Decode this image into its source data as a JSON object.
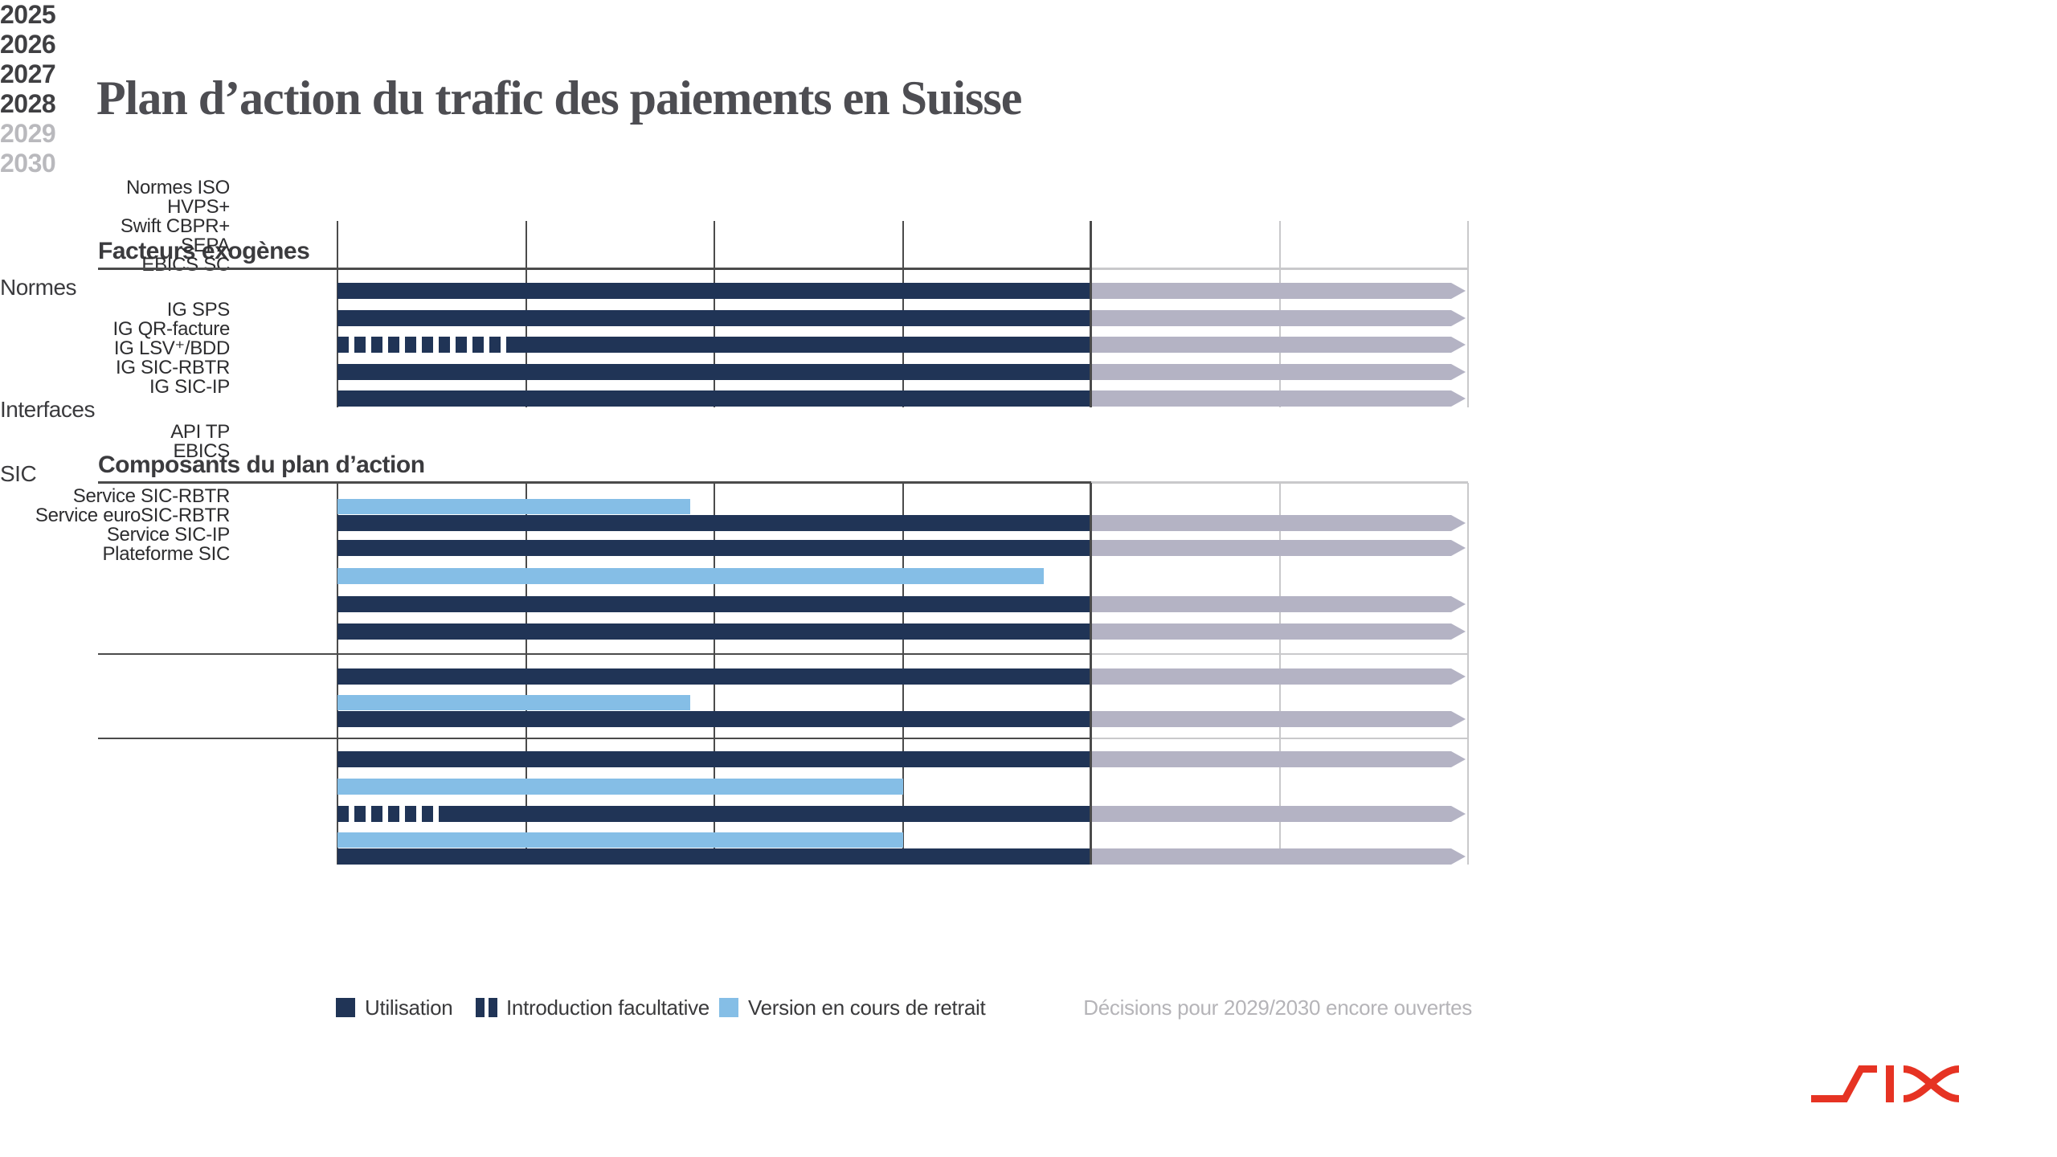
{
  "title": "Plan d’action du trafic des paiements en Suisse",
  "colors": {
    "utilisation_navy": "#203456",
    "retrait_light_blue": "#85bee6",
    "open_period_arrow_gray": "#b4b3c4",
    "grid_dark": "#4b4b4b",
    "grid_light": "#c9c9cb",
    "title_gray": "#4d4d52",
    "open_year_gray": "#b9b9bd",
    "six_logo_red": "#e63323"
  },
  "axis": {
    "years": [
      "2025",
      "2026",
      "2027",
      "2028",
      "2029",
      "2030"
    ],
    "open_years": [
      "2029",
      "2030"
    ]
  },
  "chart_data": {
    "type": "gantt",
    "unit": "year",
    "x_range": [
      2025,
      2031
    ],
    "decided_until": 2029,
    "sections": [
      {
        "heading": "Facteurs exogènes",
        "groups": [
          {
            "name": "",
            "rows": [
              {
                "label": "Normes ISO",
                "bars": [
                  {
                    "kind": "use",
                    "from": 2025,
                    "to": 2029
                  }
                ],
                "arrow": true
              },
              {
                "label": "HVPS+",
                "bars": [
                  {
                    "kind": "use",
                    "from": 2025,
                    "to": 2029
                  }
                ],
                "arrow": true
              },
              {
                "label": "Swift CBPR+",
                "bars": [
                  {
                    "kind": "optional",
                    "from": 2025,
                    "to": 2025.9
                  },
                  {
                    "kind": "use",
                    "from": 2025.9,
                    "to": 2029
                  }
                ],
                "arrow": true
              },
              {
                "label": "SEPA",
                "bars": [
                  {
                    "kind": "use",
                    "from": 2025,
                    "to": 2029
                  }
                ],
                "arrow": true
              },
              {
                "label": "EBICS SC",
                "bars": [
                  {
                    "kind": "use",
                    "from": 2025,
                    "to": 2029
                  }
                ],
                "arrow": true
              }
            ]
          }
        ]
      },
      {
        "heading": "Composants du plan d’action",
        "groups": [
          {
            "name": "Normes",
            "rows": [
              {
                "label": "IG SPS",
                "bars": [
                  {
                    "kind": "retirement",
                    "from": 2025,
                    "to": 2026.87,
                    "lane": "top"
                  },
                  {
                    "kind": "use",
                    "from": 2025,
                    "to": 2029,
                    "lane": "bottom"
                  }
                ],
                "arrow": true
              },
              {
                "label": "IG QR-facture",
                "bars": [
                  {
                    "kind": "use",
                    "from": 2025,
                    "to": 2029
                  }
                ],
                "arrow": true
              },
              {
                "label": "IG LSV⁺/BDD",
                "bars": [
                  {
                    "kind": "retirement",
                    "from": 2025,
                    "to": 2028.75
                  }
                ],
                "arrow": false
              },
              {
                "label": "IG SIC-RBTR",
                "bars": [
                  {
                    "kind": "use",
                    "from": 2025,
                    "to": 2029
                  }
                ],
                "arrow": true
              },
              {
                "label": "IG SIC-IP",
                "bars": [
                  {
                    "kind": "use",
                    "from": 2025,
                    "to": 2029
                  }
                ],
                "arrow": true
              }
            ]
          },
          {
            "name": "Interfaces",
            "rows": [
              {
                "label": "API TP",
                "bars": [
                  {
                    "kind": "use",
                    "from": 2025,
                    "to": 2029
                  }
                ],
                "arrow": true
              },
              {
                "label": "EBICS",
                "bars": [
                  {
                    "kind": "retirement",
                    "from": 2025,
                    "to": 2026.87,
                    "lane": "top"
                  },
                  {
                    "kind": "use",
                    "from": 2025,
                    "to": 2029,
                    "lane": "bottom"
                  }
                ],
                "arrow": true
              }
            ]
          },
          {
            "name": "SIC",
            "rows": [
              {
                "label": "Service SIC-RBTR",
                "bars": [
                  {
                    "kind": "use",
                    "from": 2025,
                    "to": 2029
                  }
                ],
                "arrow": true
              },
              {
                "label": "Service euroSIC-RBTR",
                "bars": [
                  {
                    "kind": "retirement",
                    "from": 2025,
                    "to": 2028
                  }
                ],
                "arrow": false
              },
              {
                "label": "Service SIC-IP",
                "bars": [
                  {
                    "kind": "optional",
                    "from": 2025,
                    "to": 2025.54
                  },
                  {
                    "kind": "use",
                    "from": 2025.54,
                    "to": 2029
                  }
                ],
                "arrow": true
              },
              {
                "label": "Plateforme SIC",
                "bars": [
                  {
                    "kind": "retirement",
                    "from": 2025,
                    "to": 2028,
                    "lane": "top"
                  },
                  {
                    "kind": "use",
                    "from": 2025,
                    "to": 2029,
                    "lane": "bottom"
                  }
                ],
                "arrow": true
              }
            ]
          }
        ]
      }
    ]
  },
  "legend": {
    "items": [
      {
        "kind": "use",
        "label": "Utilisation"
      },
      {
        "kind": "optional",
        "label": "Introduction facultative"
      },
      {
        "kind": "retirement",
        "label": "Version en cours de retrait"
      }
    ],
    "note": "Décisions pour 2029/2030 encore ouvertes"
  },
  "logo": {
    "name": "SIX"
  }
}
